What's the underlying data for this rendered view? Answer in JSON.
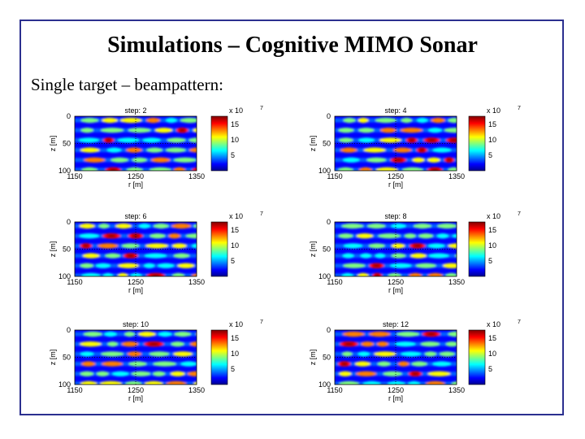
{
  "slide": {
    "title": "Simulations – Cognitive MIMO Sonar",
    "subtitle": "Single target – beampattern:"
  },
  "figure": {
    "xlabel": "r [m]",
    "ylabel": "z [m]",
    "xticks": [
      "1150",
      "1250",
      "1350"
    ],
    "yticks": [
      "0",
      "50",
      "100"
    ],
    "colorbar_ticks": [
      "15",
      "10",
      "5"
    ],
    "colorbar_exponent": "x 10",
    "colorbar_exponent_power": "7",
    "colorscale": [
      "#00008f",
      "#0000ff",
      "#0080ff",
      "#00ffff",
      "#80ff80",
      "#ffff00",
      "#ff8000",
      "#ff0000",
      "#800000"
    ],
    "panels": [
      {
        "title": "step: 2"
      },
      {
        "title": "step: 4"
      },
      {
        "title": "step: 6"
      },
      {
        "title": "step: 8"
      },
      {
        "title": "step: 10"
      },
      {
        "title": "step: 12"
      }
    ]
  }
}
